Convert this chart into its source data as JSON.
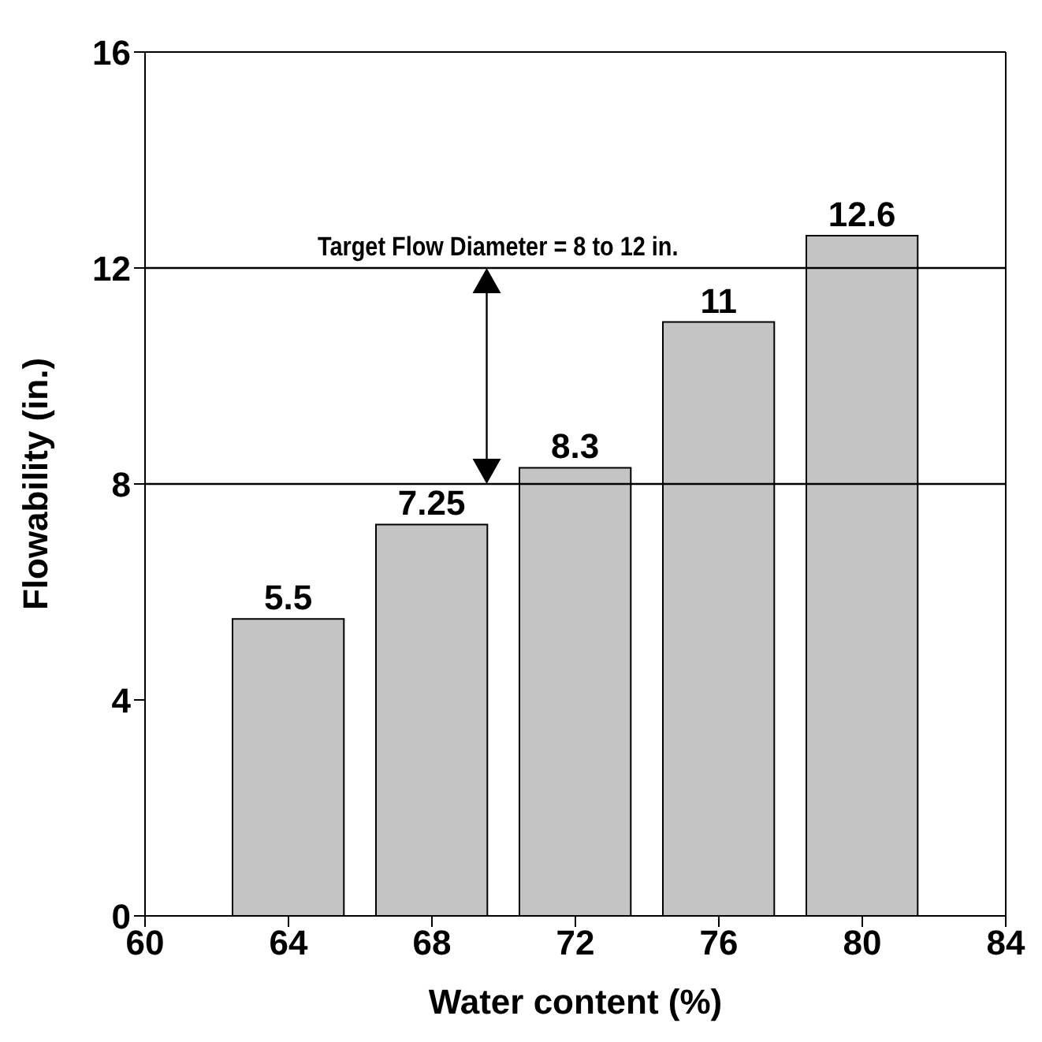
{
  "chart_data": {
    "type": "bar",
    "xlabel": "Water content (%)",
    "ylabel": "Flowability (in.)",
    "x": [
      64,
      68,
      72,
      76,
      80
    ],
    "values": [
      5.5,
      7.25,
      8.3,
      11,
      12.6
    ],
    "color": "#c4c4c4",
    "xlim": [
      60,
      84
    ],
    "xticks": [
      60,
      64,
      68,
      72,
      76,
      80,
      84
    ],
    "ylim": [
      0,
      16
    ],
    "yticks": [
      0,
      4,
      8,
      12,
      16
    ],
    "ref_lines": [
      {
        "axis": "y",
        "value": 12,
        "label": "Target Flow Diameter = 8 to 12 in."
      },
      {
        "axis": "y",
        "value": 8
      }
    ],
    "data_labels": true,
    "grid": false,
    "legend": false
  }
}
